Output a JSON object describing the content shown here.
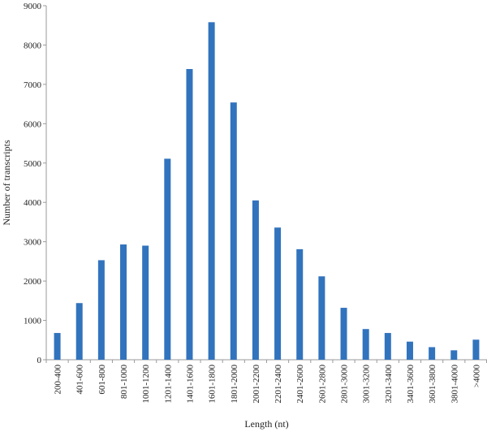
{
  "chart_data": {
    "type": "bar",
    "categories": [
      "200-400",
      "401-600",
      "601-800",
      "801-1000",
      "1001-1200",
      "1201-1400",
      "1401-1600",
      "1601-1800",
      "1801-2000",
      "2001-2200",
      "2201-2400",
      "2401-2600",
      "2601-2800",
      "2801-3000",
      "3001-3200",
      "3201-3400",
      "3401-3600",
      "3601-3800",
      "3801-4000",
      ">4000"
    ],
    "values": [
      680,
      1440,
      2530,
      2930,
      2900,
      5110,
      7390,
      8580,
      6540,
      4050,
      3360,
      2810,
      2120,
      1320,
      780,
      680,
      460,
      320,
      240,
      510
    ],
    "xlabel": "Length (nt)",
    "ylabel": "Number of transcripts",
    "ylim": [
      0,
      9000
    ],
    "yticks": [
      0,
      1000,
      2000,
      3000,
      4000,
      5000,
      6000,
      7000,
      8000,
      9000
    ],
    "grid": false,
    "legend": "none",
    "bar_color": "#3273bd",
    "axis_color": "#9a9a9a"
  }
}
